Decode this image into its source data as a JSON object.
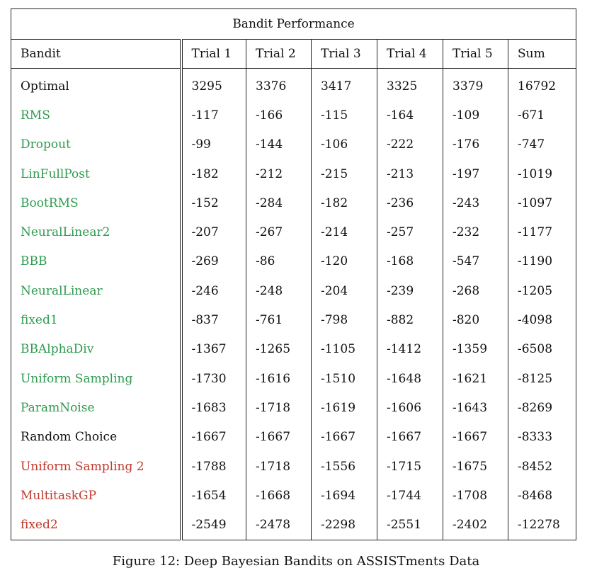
{
  "table": {
    "title": "Bandit Performance",
    "headers": [
      "Bandit",
      "Trial 1",
      "Trial 2",
      "Trial 3",
      "Trial 4",
      "Trial 5",
      "Sum"
    ],
    "rows": [
      {
        "name": "Optimal",
        "values": [
          "3295",
          "3376",
          "3417",
          "3325",
          "3379",
          "16792"
        ],
        "best": -1,
        "color": "#111111",
        "name_bold": true
      },
      {
        "name": "RMS",
        "values": [
          "-117",
          "-166",
          "-115",
          "-164",
          "-109",
          "-671"
        ],
        "best": 4,
        "color": "#2e9b4f",
        "name_bold": false
      },
      {
        "name": "Dropout",
        "values": [
          "-99",
          "-144",
          "-106",
          "-222",
          "-176",
          "-747"
        ],
        "best": 0,
        "color": "#2e9b4f",
        "name_bold": false
      },
      {
        "name": "LinFullPost",
        "values": [
          "-182",
          "-212",
          "-215",
          "-213",
          "-197",
          "-1019"
        ],
        "best": 0,
        "color": "#2e9b4f",
        "name_bold": false
      },
      {
        "name": "BootRMS",
        "values": [
          "-152",
          "-284",
          "-182",
          "-236",
          "-243",
          "-1097"
        ],
        "best": 0,
        "color": "#2e9b4f",
        "name_bold": false
      },
      {
        "name": "NeuralLinear2",
        "values": [
          "-207",
          "-267",
          "-214",
          "-257",
          "-232",
          "-1177"
        ],
        "best": 0,
        "color": "#2e9b4f",
        "name_bold": false
      },
      {
        "name": "BBB",
        "values": [
          "-269",
          "-86",
          "-120",
          "-168",
          "-547",
          "-1190"
        ],
        "best": 1,
        "color": "#2e9b4f",
        "name_bold": false
      },
      {
        "name": "NeuralLinear",
        "values": [
          "-246",
          "-248",
          "-204",
          "-239",
          "-268",
          "-1205"
        ],
        "best": 2,
        "color": "#2e9b4f",
        "name_bold": false
      },
      {
        "name": "fixed1",
        "values": [
          "-837",
          "-761",
          "-798",
          "-882",
          "-820",
          "-4098"
        ],
        "best": 1,
        "color": "#2e9b4f",
        "name_bold": false
      },
      {
        "name": "BBAlphaDiv",
        "values": [
          "-1367",
          "-1265",
          "-1105",
          "-1412",
          "-1359",
          "-6508"
        ],
        "best": 2,
        "color": "#2e9b4f",
        "name_bold": false
      },
      {
        "name": "Uniform Sampling",
        "values": [
          "-1730",
          "-1616",
          "-1510",
          "-1648",
          "-1621",
          "-8125"
        ],
        "best": 2,
        "color": "#2e9b4f",
        "name_bold": false
      },
      {
        "name": "ParamNoise",
        "values": [
          "-1683",
          "-1718",
          "-1619",
          "-1606",
          "-1643",
          "-8269"
        ],
        "best": 3,
        "color": "#2e9b4f",
        "name_bold": false
      },
      {
        "name": "Random Choice",
        "values": [
          "-1667",
          "-1667",
          "-1667",
          "-1667",
          "-1667",
          "-8333"
        ],
        "best": -1,
        "color": "#111111",
        "name_bold": true
      },
      {
        "name": "Uniform Sampling 2",
        "values": [
          "-1788",
          "-1718",
          "-1556",
          "-1715",
          "-1675",
          "-8452"
        ],
        "best": 2,
        "color": "#c0392b",
        "name_bold": false
      },
      {
        "name": "MultitaskGP",
        "values": [
          "-1654",
          "-1668",
          "-1694",
          "-1744",
          "-1708",
          "-8468"
        ],
        "best": 0,
        "color": "#c0392b",
        "name_bold": false
      },
      {
        "name": "fixed2",
        "values": [
          "-2549",
          "-2478",
          "-2298",
          "-2551",
          "-2402",
          "-12278"
        ],
        "best": 2,
        "color": "#c0392b",
        "name_bold": false
      }
    ]
  },
  "caption": "Figure 12: Deep Bayesian Bandits on ASSISTments Data"
}
